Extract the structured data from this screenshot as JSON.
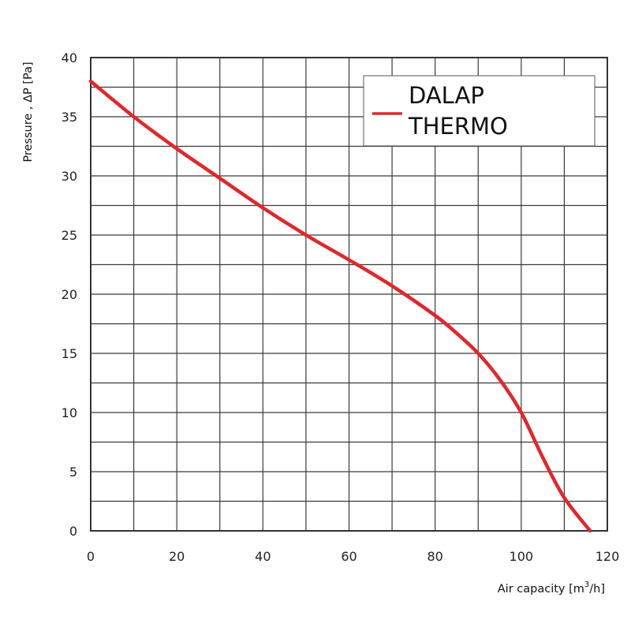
{
  "chart_data": {
    "type": "line",
    "title": "",
    "xlabel": "Air capacity",
    "xlabel_unit_prefix": "[m",
    "xlabel_unit_sup": "3",
    "xlabel_unit_suffix": "/h]",
    "ylabel": "Pressure , ΔP [Pa]",
    "xlim": [
      0,
      120
    ],
    "ylim": [
      0,
      40
    ],
    "x_ticks": [
      0,
      20,
      40,
      60,
      80,
      100,
      120
    ],
    "y_ticks": [
      0,
      5,
      10,
      15,
      20,
      25,
      30,
      35,
      40
    ],
    "x_minor_step": 10,
    "y_minor_step": 2.5,
    "grid": true,
    "legend_position": "top-right",
    "series": [
      {
        "name": "DALAP THERMO",
        "name_lines": [
          "DALAP",
          "THERMO"
        ],
        "color": "#e2262b",
        "x": [
          0,
          10,
          20,
          30,
          40,
          50,
          60,
          70,
          80,
          85,
          90,
          95,
          100,
          105,
          110,
          116
        ],
        "y": [
          38,
          35,
          32.3,
          29.8,
          27.3,
          25,
          22.9,
          20.7,
          18.2,
          16.7,
          15,
          12.8,
          10,
          6.2,
          2.8,
          0
        ]
      }
    ]
  }
}
